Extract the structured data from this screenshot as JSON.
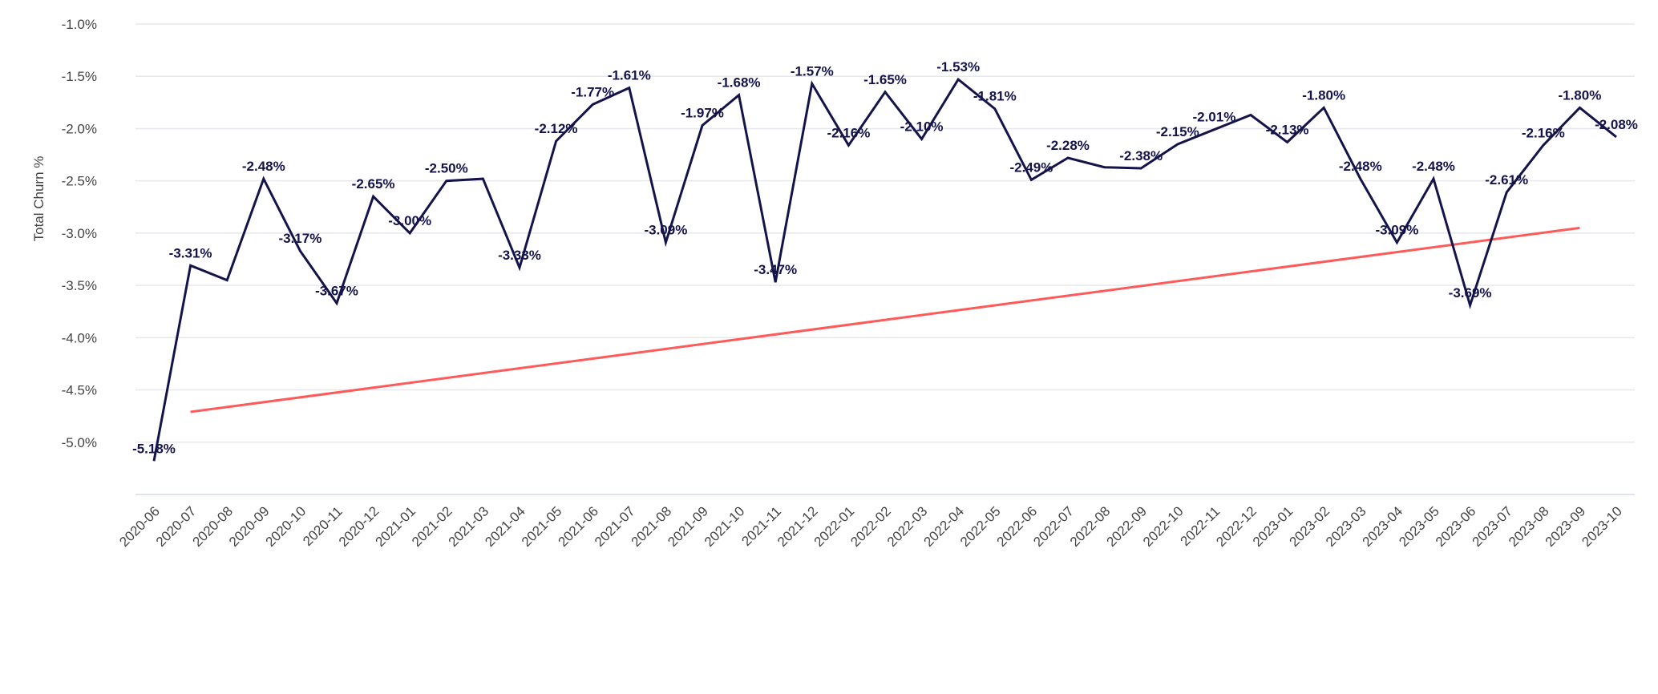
{
  "chart_data": {
    "type": "line",
    "title": "",
    "xlabel": "",
    "ylabel": "Total Churn %",
    "ylim": [
      -5.5,
      -1.0
    ],
    "yticks": [
      -1.0,
      -1.5,
      -2.0,
      -2.5,
      -3.0,
      -3.5,
      -4.0,
      -4.5,
      -5.0
    ],
    "ytick_labels": [
      "-1.0%",
      "-1.5%",
      "-2.0%",
      "-2.5%",
      "-3.0%",
      "-3.5%",
      "-4.0%",
      "-4.5%",
      "-5.0%"
    ],
    "grid": true,
    "categories": [
      "2020-06",
      "2020-07",
      "2020-08",
      "2020-09",
      "2020-10",
      "2020-11",
      "2020-12",
      "2021-01",
      "2021-02",
      "2021-03",
      "2021-04",
      "2021-05",
      "2021-06",
      "2021-07",
      "2021-08",
      "2021-09",
      "2021-10",
      "2021-11",
      "2021-12",
      "2022-01",
      "2022-02",
      "2022-03",
      "2022-04",
      "2022-05",
      "2022-06",
      "2022-07",
      "2022-08",
      "2022-09",
      "2022-10",
      "2022-11",
      "2022-12",
      "2023-01",
      "2023-02",
      "2023-03",
      "2023-04",
      "2023-05",
      "2023-06",
      "2023-07",
      "2023-08",
      "2023-09",
      "2023-10"
    ],
    "series": [
      {
        "name": "Total Churn %",
        "color": "#14144a",
        "values": [
          -5.18,
          -3.31,
          -3.45,
          -2.48,
          -3.17,
          -3.67,
          -2.65,
          -3.0,
          -2.5,
          -2.48,
          -3.33,
          -2.12,
          -1.77,
          -1.61,
          -3.09,
          -1.97,
          -1.68,
          -3.47,
          -1.57,
          -2.16,
          -1.65,
          -2.1,
          -1.53,
          -1.81,
          -2.49,
          -2.28,
          -2.37,
          -2.38,
          -2.15,
          -2.01,
          -1.87,
          -2.13,
          -1.8,
          -2.48,
          -3.09,
          -2.48,
          -3.69,
          -2.61,
          -2.16,
          -1.8,
          -2.08
        ],
        "data_labels": [
          "-5.18%",
          "-3.31%",
          null,
          "-2.48%",
          "-3.17%",
          "-3.67%",
          "-2.65%",
          "-3.00%",
          "-2.50%",
          null,
          "-3.33%",
          "-2.12%",
          "-1.77%",
          "-1.61%",
          "-3.09%",
          "-1.97%",
          "-1.68%",
          "-3.47%",
          "-1.57%",
          "-2.16%",
          "-1.65%",
          "-2.10%",
          "-1.53%",
          "-1.81%",
          "-2.49%",
          "-2.28%",
          null,
          "-2.38%",
          "-2.15%",
          "-2.01%",
          null,
          "-2.13%",
          "-1.80%",
          "-2.48%",
          "-3.09%",
          "-2.48%",
          "-3.69%",
          "-2.61%",
          "-2.16%",
          "-1.80%",
          "-2.08%"
        ]
      },
      {
        "name": "Trend",
        "color": "#ff5a5a",
        "type": "trendline",
        "start": {
          "x": "2020-07",
          "y": -4.71
        },
        "end": {
          "x": "2023-09",
          "y": -2.95
        }
      }
    ]
  }
}
